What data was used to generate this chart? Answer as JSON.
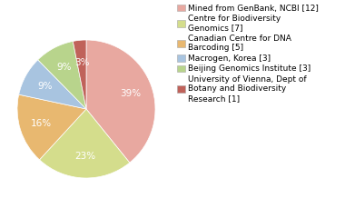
{
  "labels": [
    "Mined from GenBank, NCBI [12]",
    "Centre for Biodiversity\nGenomics [7]",
    "Canadian Centre for DNA\nBarcoding [5]",
    "Macrogen, Korea [3]",
    "Beijing Genomics Institute [3]",
    "University of Vienna, Dept of\nBotany and Biodiversity\nResearch [1]"
  ],
  "values": [
    38,
    22,
    16,
    9,
    9,
    3
  ],
  "colors": [
    "#e8a8a0",
    "#d4dd8c",
    "#e8b870",
    "#a8c4e0",
    "#b8d48c",
    "#c0625a"
  ],
  "legend_fontsize": 6.5,
  "text_fontsize": 7.5,
  "background_color": "#ffffff"
}
